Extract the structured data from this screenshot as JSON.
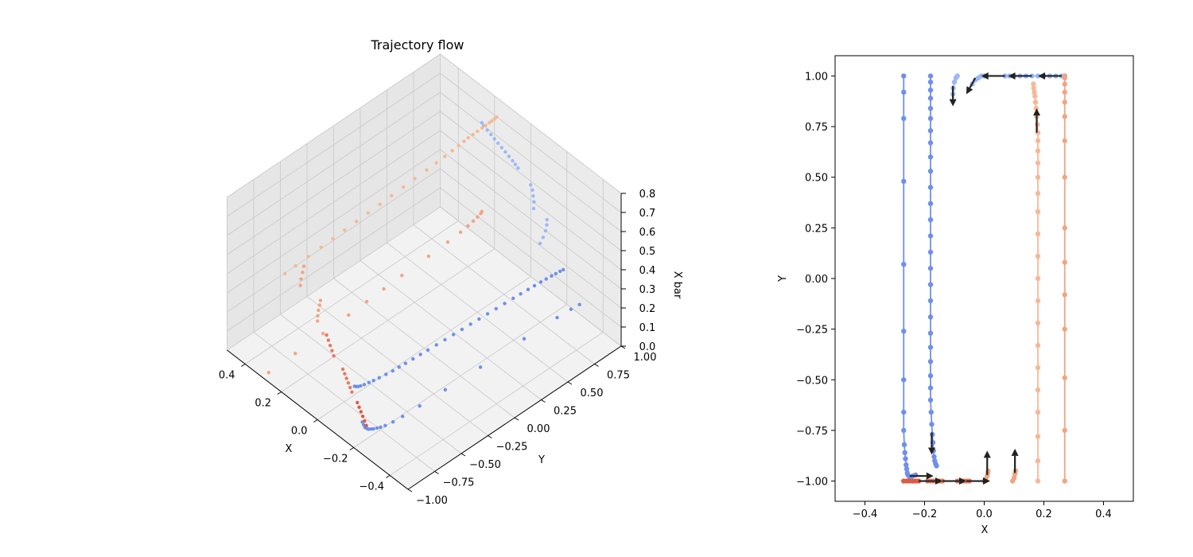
{
  "colors": {
    "blue": "#6f8fea",
    "blue_light": "#9bb8f8",
    "peach": "#f5b898",
    "peach_dark": "#f0a582",
    "red": "#dd5a43",
    "red_mid": "#e77a5c",
    "arrow": "#222222",
    "pane": "#f2f2f2",
    "grid": "#c8c8c8"
  },
  "chart_data": [
    {
      "type": "scatter",
      "projection": "3d",
      "title": "Trajectory flow",
      "xlabel": "X",
      "ylabel": "Y",
      "zlabel": "X bar",
      "xlim": [
        -0.5,
        0.5
      ],
      "ylim": [
        -1.0,
        1.0
      ],
      "zlim": [
        0.0,
        0.8
      ],
      "x_ticks": [
        "−0.4",
        "−0.2",
        "0.0",
        "0.2",
        "0.4"
      ],
      "y_ticks": [
        "−1.00",
        "−0.75",
        "−0.50",
        "−0.25",
        "0.00",
        "0.25",
        "0.50",
        "0.75",
        "1.00"
      ],
      "z_ticks": [
        "0.0",
        "0.1",
        "0.2",
        "0.3",
        "0.4",
        "0.5",
        "0.6",
        "0.7",
        "0.8"
      ],
      "grid": true,
      "description_of_series": "six trajectories sampled at each recorded time step; each trajectory is drawn as points at successive X bar heights",
      "series": [
        {
          "color_key": "blue",
          "x": -0.27,
          "y_path": "top-to-bottom"
        },
        {
          "color_key": "blue",
          "x": -0.18,
          "y_path": "top-to-bottom"
        },
        {
          "color_key": "blue_light",
          "x": -0.1,
          "y_path": "top-row"
        },
        {
          "color_key": "peach",
          "x": 0.18,
          "y_path": "bottom-to-top"
        },
        {
          "color_key": "peach_dark",
          "x": 0.27,
          "y_path": "bottom-to-top"
        },
        {
          "color_key": "red",
          "x": -0.27,
          "y_path": "bottom-row"
        }
      ]
    },
    {
      "type": "line",
      "xlabel": "X",
      "ylabel": "Y",
      "xlim": [
        -0.5,
        0.5
      ],
      "ylim": [
        -1.1,
        1.1
      ],
      "x_ticks": [
        -0.4,
        -0.2,
        0.0,
        0.2,
        0.4
      ],
      "x_tick_labels": [
        "−0.4",
        "−0.2",
        "0.0",
        "0.2",
        "0.4"
      ],
      "y_ticks": [
        -1.0,
        -0.75,
        -0.5,
        -0.25,
        0.0,
        0.25,
        0.5,
        0.75,
        1.0
      ],
      "y_tick_labels": [
        "−1.00",
        "−0.75",
        "−0.50",
        "−0.25",
        "0.00",
        "0.25",
        "0.50",
        "0.75",
        "1.00"
      ],
      "series": [
        {
          "color_key": "blue",
          "points": [
            [
              -0.27,
              1.0
            ],
            [
              -0.27,
              0.92
            ],
            [
              -0.27,
              0.79
            ],
            [
              -0.27,
              0.48
            ],
            [
              -0.27,
              0.07
            ],
            [
              -0.27,
              -0.26
            ],
            [
              -0.27,
              -0.5
            ],
            [
              -0.27,
              -0.66
            ],
            [
              -0.27,
              -0.75
            ],
            [
              -0.268,
              -0.82
            ],
            [
              -0.266,
              -0.86
            ],
            [
              -0.264,
              -0.89
            ],
            [
              -0.262,
              -0.92
            ],
            [
              -0.26,
              -0.94
            ],
            [
              -0.258,
              -0.96
            ],
            [
              -0.256,
              -0.97
            ],
            [
              -0.25,
              -0.98
            ],
            [
              -0.24,
              -0.975
            ],
            [
              -0.23,
              -0.97
            ]
          ]
        },
        {
          "color_key": "blue",
          "points": [
            [
              -0.18,
              1.0
            ],
            [
              -0.18,
              0.97
            ],
            [
              -0.18,
              0.93
            ],
            [
              -0.18,
              0.89
            ],
            [
              -0.18,
              0.84
            ],
            [
              -0.18,
              0.79
            ],
            [
              -0.18,
              0.73
            ],
            [
              -0.18,
              0.67
            ],
            [
              -0.18,
              0.6
            ],
            [
              -0.18,
              0.53
            ],
            [
              -0.18,
              0.45
            ],
            [
              -0.18,
              0.37
            ],
            [
              -0.18,
              0.29
            ],
            [
              -0.18,
              0.21
            ],
            [
              -0.18,
              0.13
            ],
            [
              -0.18,
              0.05
            ],
            [
              -0.18,
              -0.03
            ],
            [
              -0.18,
              -0.11
            ],
            [
              -0.18,
              -0.19
            ],
            [
              -0.18,
              -0.27
            ],
            [
              -0.18,
              -0.34
            ],
            [
              -0.18,
              -0.41
            ],
            [
              -0.18,
              -0.48
            ],
            [
              -0.18,
              -0.54
            ],
            [
              -0.18,
              -0.6
            ],
            [
              -0.178,
              -0.66
            ],
            [
              -0.176,
              -0.72
            ],
            [
              -0.174,
              -0.77
            ],
            [
              -0.172,
              -0.81
            ],
            [
              -0.17,
              -0.85
            ],
            [
              -0.168,
              -0.88
            ],
            [
              -0.166,
              -0.9
            ],
            [
              -0.163,
              -0.915
            ],
            [
              -0.16,
              -0.925
            ]
          ]
        },
        {
          "color_key": "blue_light",
          "points": [
            [
              -0.105,
              0.91
            ],
            [
              -0.104,
              0.94
            ],
            [
              -0.1,
              0.97
            ],
            [
              -0.095,
              0.99
            ],
            [
              -0.09,
              1.0
            ]
          ]
        },
        {
          "color_key": "blue_light",
          "points": [
            [
              -0.04,
              0.96
            ],
            [
              -0.03,
              0.98
            ],
            [
              -0.02,
              0.99
            ],
            [
              -0.01,
              1.0
            ],
            [
              0.0,
              1.0
            ]
          ]
        },
        {
          "color_key": "blue_light",
          "points": [
            [
              0.07,
              1.0
            ],
            [
              0.085,
              1.0
            ],
            [
              0.1,
              1.0
            ],
            [
              0.12,
              1.0
            ],
            [
              0.14,
              1.0
            ],
            [
              0.16,
              1.0
            ],
            [
              0.18,
              1.0
            ],
            [
              0.2,
              1.0
            ],
            [
              0.22,
              1.0
            ],
            [
              0.24,
              1.0
            ],
            [
              0.26,
              1.0
            ],
            [
              0.27,
              1.0
            ]
          ]
        },
        {
          "color_key": "peach",
          "points": [
            [
              0.18,
              -1.0
            ],
            [
              0.18,
              -0.9
            ],
            [
              0.18,
              -0.78
            ],
            [
              0.18,
              -0.66
            ],
            [
              0.18,
              -0.55
            ],
            [
              0.18,
              -0.44
            ],
            [
              0.18,
              -0.33
            ],
            [
              0.18,
              -0.22
            ],
            [
              0.18,
              -0.11
            ],
            [
              0.18,
              0.0
            ],
            [
              0.18,
              0.11
            ],
            [
              0.18,
              0.22
            ],
            [
              0.18,
              0.33
            ],
            [
              0.18,
              0.42
            ],
            [
              0.18,
              0.5
            ],
            [
              0.18,
              0.57
            ],
            [
              0.18,
              0.63
            ],
            [
              0.18,
              0.68
            ],
            [
              0.18,
              0.72
            ],
            [
              0.178,
              0.76
            ],
            [
              0.176,
              0.8
            ],
            [
              0.174,
              0.84
            ],
            [
              0.172,
              0.87
            ],
            [
              0.17,
              0.9
            ],
            [
              0.168,
              0.92
            ],
            [
              0.166,
              0.94
            ],
            [
              0.165,
              0.96
            ]
          ]
        },
        {
          "color_key": "peach_dark",
          "points": [
            [
              0.27,
              -1.0
            ],
            [
              0.27,
              -0.75
            ],
            [
              0.27,
              -0.49
            ],
            [
              0.27,
              -0.25
            ],
            [
              0.27,
              -0.08
            ],
            [
              0.27,
              0.08
            ],
            [
              0.27,
              0.25
            ],
            [
              0.27,
              0.5
            ],
            [
              0.27,
              0.68
            ],
            [
              0.27,
              0.8
            ],
            [
              0.27,
              0.87
            ],
            [
              0.27,
              0.92
            ],
            [
              0.27,
              0.96
            ],
            [
              0.27,
              0.99
            ],
            [
              0.27,
              1.0
            ]
          ]
        },
        {
          "color_key": "red",
          "points": [
            [
              -0.27,
              -1.0
            ],
            [
              -0.26,
              -1.0
            ],
            [
              -0.25,
              -1.0
            ],
            [
              -0.24,
              -1.0
            ],
            [
              -0.23,
              -1.0
            ],
            [
              -0.22,
              -1.0
            ]
          ]
        },
        {
          "color_key": "red_mid",
          "points": [
            [
              -0.19,
              -1.0
            ],
            [
              -0.18,
              -1.0
            ],
            [
              -0.17,
              -1.0
            ],
            [
              -0.16,
              -1.0
            ],
            [
              -0.15,
              -1.0
            ],
            [
              -0.14,
              -1.0
            ]
          ]
        },
        {
          "color_key": "red_mid",
          "points": [
            [
              -0.09,
              -1.0
            ],
            [
              -0.08,
              -1.0
            ],
            [
              -0.07,
              -1.0
            ],
            [
              -0.06,
              -1.0
            ],
            [
              -0.05,
              -1.0
            ]
          ]
        },
        {
          "color_key": "peach_dark",
          "points": [
            [
              0.0,
              -1.0
            ],
            [
              0.005,
              -0.99
            ],
            [
              0.01,
              -0.975
            ],
            [
              0.012,
              -0.96
            ],
            [
              0.013,
              -0.95
            ]
          ]
        },
        {
          "color_key": "peach_dark",
          "points": [
            [
              0.095,
              -1.0
            ],
            [
              0.1,
              -0.985
            ],
            [
              0.103,
              -0.965
            ],
            [
              0.105,
              -0.95
            ]
          ]
        }
      ],
      "arrows": [
        {
          "x": -0.25,
          "y": -0.975,
          "dx": 0.08,
          "dy": 0
        },
        {
          "x": -0.22,
          "y": -1.0,
          "dx": 0.08,
          "dy": 0
        },
        {
          "x": -0.14,
          "y": -1.0,
          "dx": 0.08,
          "dy": 0
        },
        {
          "x": -0.06,
          "y": -1.0,
          "dx": 0.08,
          "dy": 0
        },
        {
          "x": 0.01,
          "y": -0.97,
          "dx": 0.0,
          "dy": 0.12
        },
        {
          "x": 0.103,
          "y": -0.96,
          "dx": 0.0,
          "dy": 0.12
        },
        {
          "x": -0.176,
          "y": -0.76,
          "dx": 0.0,
          "dy": -0.11
        },
        {
          "x": -0.105,
          "y": 0.95,
          "dx": 0.0,
          "dy": -0.1
        },
        {
          "x": -0.03,
          "y": 0.99,
          "dx": -0.03,
          "dy": -0.08
        },
        {
          "x": 0.07,
          "y": 1.0,
          "dx": -0.08,
          "dy": 0
        },
        {
          "x": 0.16,
          "y": 1.0,
          "dx": -0.08,
          "dy": 0
        },
        {
          "x": 0.26,
          "y": 1.0,
          "dx": -0.08,
          "dy": 0
        },
        {
          "x": 0.176,
          "y": 0.72,
          "dx": 0.0,
          "dy": 0.12
        }
      ]
    }
  ]
}
